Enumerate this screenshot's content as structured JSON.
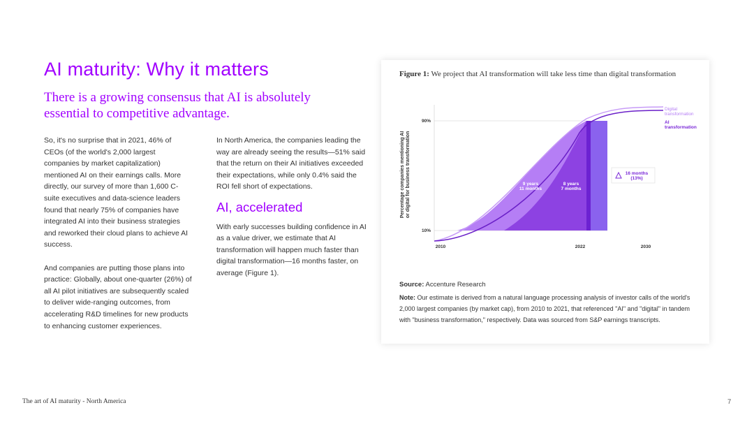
{
  "header": {
    "title": "AI maturity: Why it matters",
    "subtitle": "There is a growing consensus that AI is absolutely essential to competitive advantage."
  },
  "body": {
    "column_1": [
      "So, it's no surprise that in 2021, 46% of CEOs (of the world's 2,000 largest companies by market capitalization) mentioned AI on their earnings calls. More directly, our survey of more than 1,600 C-suite executives and data-science leaders found that nearly 75% of companies have integrated AI into their business strategies and reworked their cloud plans to achieve AI success.",
      "And companies are putting those plans into practice: Globally, about one-quarter (26%) of all AI pilot initiatives are subsequently scaled to deliver wide-ranging outcomes, from accelerating R&D timelines for new products to enhancing customer experiences."
    ],
    "column_2": {
      "intro": "In North America, the companies leading the way are already seeing the results—51% said that the return on their AI initiatives exceeded their expectations, while only 0.4% said the ROI fell short of expectations.",
      "heading": "AI, accelerated",
      "text": "With early successes building confidence in AI as a value driver, we estimate that AI transformation will happen much faster than digital transformation—16 months faster, on average (Figure 1)."
    }
  },
  "figure": {
    "caption_label": "Figure 1:",
    "caption": "We project that AI transformation will take less time than digital transformation",
    "y_axis_label": [
      "Percentage companies mentioning AI",
      "or digital for business transformation"
    ],
    "y_labels": [
      "90%",
      "10%"
    ],
    "x_labels": [
      "2010",
      "2022",
      "2030"
    ],
    "legend": [
      [
        "Digital",
        "transformation"
      ],
      [
        "AI",
        "transformation"
      ]
    ],
    "annotations": [
      [
        "9 years",
        "11 months"
      ],
      [
        "8 years",
        "7 months"
      ],
      [
        "16 months",
        "(13%)"
      ]
    ],
    "source_label": "Source:",
    "source": "Accenture Research",
    "note_label": "Note:",
    "note": "Our estimate is derived from a natural language processing analysis of investor calls of the world's 2,000 largest companies (by market cap), from 2010 to 2021, that referenced \"AI\" and \"digital\" in tandem with \"business transformation,\" respectively. Data was sourced from S&P earnings transcripts."
  },
  "footer": {
    "text": "The art of AI maturity - North America",
    "page": "7"
  }
}
